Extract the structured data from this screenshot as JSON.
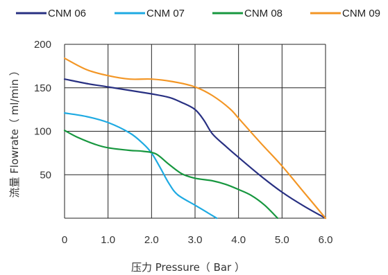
{
  "chart_data": {
    "type": "line",
    "xlabel": "压力 Pressure（ Bar ）",
    "ylabel": "流量 Flowrate（ ml/min ）",
    "xlim": [
      0,
      6
    ],
    "ylim": [
      0,
      200
    ],
    "x_ticks": [
      0,
      1,
      2,
      3,
      4,
      5,
      6
    ],
    "x_tick_labels": [
      "0",
      "1.0",
      "2.0",
      "3.0",
      "4.0",
      "5.0",
      "6.0"
    ],
    "y_ticks": [
      50,
      100,
      150,
      200
    ],
    "y_tick_labels": [
      "50",
      "100",
      "150",
      "200"
    ],
    "grid": true,
    "legend_position": "top",
    "series": [
      {
        "name": "CNM 06",
        "color": "#283082",
        "points": [
          [
            0,
            160
          ],
          [
            0.5,
            155
          ],
          [
            1,
            151
          ],
          [
            1.5,
            147
          ],
          [
            2,
            143
          ],
          [
            2.4,
            139
          ],
          [
            2.7,
            133
          ],
          [
            3,
            125
          ],
          [
            3.2,
            113
          ],
          [
            3.4,
            97
          ],
          [
            3.7,
            83
          ],
          [
            4,
            70
          ],
          [
            4.5,
            49
          ],
          [
            5,
            30
          ],
          [
            5.5,
            14
          ],
          [
            6,
            0
          ]
        ]
      },
      {
        "name": "CNM 07",
        "color": "#1eaae2",
        "points": [
          [
            0,
            121
          ],
          [
            0.5,
            117
          ],
          [
            1,
            110
          ],
          [
            1.5,
            98
          ],
          [
            1.8,
            86
          ],
          [
            2,
            75
          ],
          [
            2.2,
            58
          ],
          [
            2.4,
            40
          ],
          [
            2.6,
            27
          ],
          [
            3,
            15
          ],
          [
            3.3,
            6
          ],
          [
            3.5,
            0
          ]
        ]
      },
      {
        "name": "CNM 08",
        "color": "#17973f",
        "points": [
          [
            0,
            101
          ],
          [
            0.3,
            93
          ],
          [
            0.7,
            85
          ],
          [
            1,
            81
          ],
          [
            1.5,
            78
          ],
          [
            1.8,
            77
          ],
          [
            2.1,
            74
          ],
          [
            2.4,
            62
          ],
          [
            2.7,
            51
          ],
          [
            3,
            46
          ],
          [
            3.4,
            43
          ],
          [
            3.7,
            39
          ],
          [
            4,
            33
          ],
          [
            4.3,
            26
          ],
          [
            4.6,
            15
          ],
          [
            4.9,
            0
          ]
        ]
      },
      {
        "name": "CNM 09",
        "color": "#f39625",
        "points": [
          [
            0,
            184
          ],
          [
            0.5,
            171
          ],
          [
            1,
            164
          ],
          [
            1.5,
            160
          ],
          [
            2,
            160
          ],
          [
            2.5,
            157
          ],
          [
            3,
            151
          ],
          [
            3.4,
            141
          ],
          [
            3.8,
            126
          ],
          [
            4,
            115
          ],
          [
            4.5,
            87
          ],
          [
            5,
            60
          ],
          [
            5.5,
            30
          ],
          [
            6,
            0
          ]
        ]
      }
    ]
  }
}
